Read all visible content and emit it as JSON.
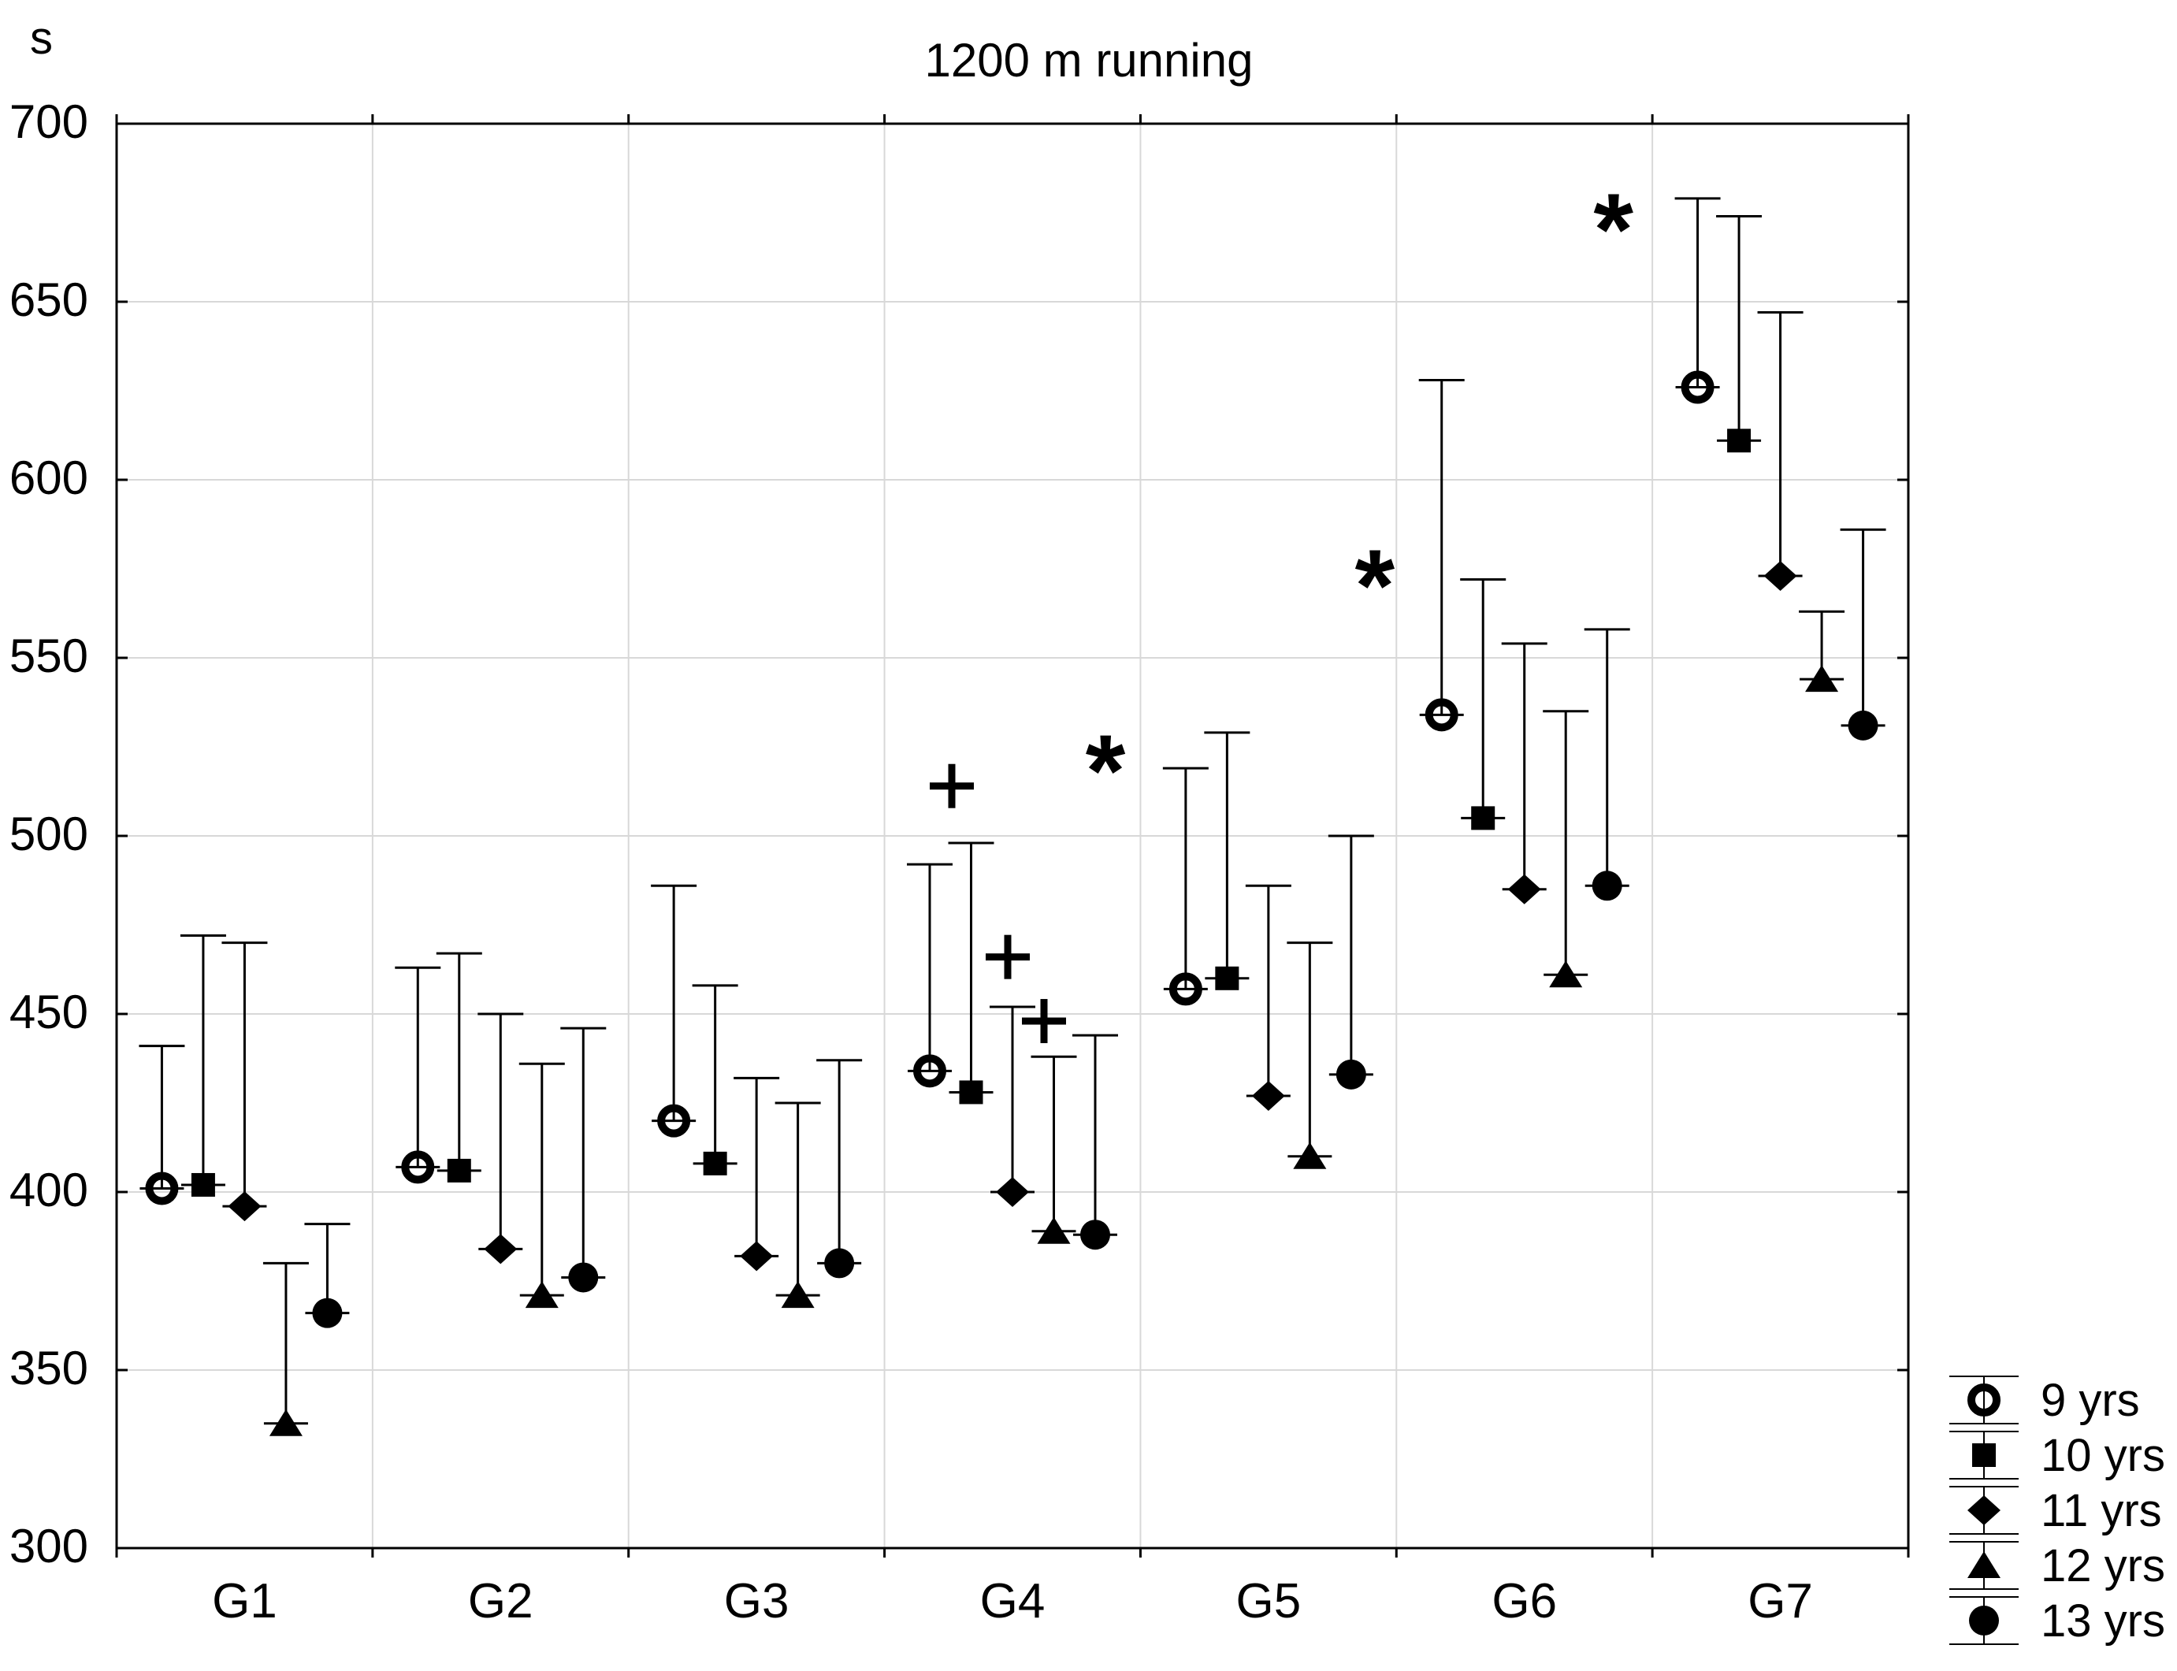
{
  "title": "1200 m running",
  "y_axis": {
    "unit_label": "s",
    "min": 300,
    "max": 700,
    "tick_step": 50,
    "tick_labels": [
      "700",
      "650",
      "600",
      "550",
      "500",
      "450",
      "400",
      "350",
      "300"
    ]
  },
  "x_axis": {
    "categories": [
      "G1",
      "G2",
      "G3",
      "G4",
      "G5",
      "G6",
      "G7"
    ]
  },
  "legend": {
    "items": [
      {
        "label": "9 yrs",
        "marker": "open-circle"
      },
      {
        "label": "10 yrs",
        "marker": "filled-square"
      },
      {
        "label": "11 yrs",
        "marker": "filled-diamond"
      },
      {
        "label": "12 yrs",
        "marker": "filled-triangle"
      },
      {
        "label": "13 yrs",
        "marker": "filled-circle"
      }
    ]
  },
  "colors": {
    "foreground": "#000000",
    "gridline": "#d8d8d8",
    "background": "#ffffff"
  },
  "chart_data": {
    "type": "scatter",
    "title": "1200 m running",
    "ylabel": "s",
    "xlabel": "",
    "ylim": [
      300,
      700
    ],
    "y_tick_step": 50,
    "grid": true,
    "legend_position": "bottom-right-outside",
    "error_bars": "upper-only",
    "categories": [
      "G1",
      "G2",
      "G3",
      "G4",
      "G5",
      "G6",
      "G7"
    ],
    "series": [
      {
        "name": "9 yrs",
        "marker": "open-circle",
        "means": [
          401,
          407,
          420,
          434,
          457,
          534,
          626
        ],
        "upper": [
          441,
          463,
          486,
          492,
          519,
          628,
          679
        ]
      },
      {
        "name": "10 yrs",
        "marker": "filled-square",
        "means": [
          402,
          406,
          408,
          428,
          460,
          505,
          611
        ],
        "upper": [
          472,
          467,
          458,
          498,
          529,
          572,
          674
        ]
      },
      {
        "name": "11 yrs",
        "marker": "filled-diamond",
        "means": [
          396,
          384,
          382,
          400,
          427,
          485,
          573
        ],
        "upper": [
          470,
          450,
          432,
          452,
          486,
          554,
          647
        ]
      },
      {
        "name": "12 yrs",
        "marker": "filled-triangle",
        "means": [
          335,
          371,
          371,
          389,
          410,
          461,
          544
        ],
        "upper": [
          380,
          436,
          425,
          438,
          470,
          535,
          563
        ]
      },
      {
        "name": "13 yrs",
        "marker": "filled-circle",
        "means": [
          366,
          376,
          380,
          388,
          433,
          486,
          531
        ],
        "upper": [
          391,
          446,
          437,
          444,
          500,
          558,
          586
        ]
      }
    ],
    "annotations": [
      {
        "symbol": "+",
        "category": "G4",
        "dx": -77,
        "value": 514
      },
      {
        "symbol": "+",
        "category": "G4",
        "dx": -6,
        "value": 466
      },
      {
        "symbol": "+",
        "category": "G4",
        "dx": 40,
        "value": 448
      },
      {
        "symbol": "*",
        "category": "G4",
        "dx": 118,
        "value": 523
      },
      {
        "symbol": "*",
        "category": "G5",
        "dx": 135,
        "value": 575
      },
      {
        "symbol": "*",
        "category": "G6",
        "dx": 113,
        "value": 675
      }
    ]
  }
}
